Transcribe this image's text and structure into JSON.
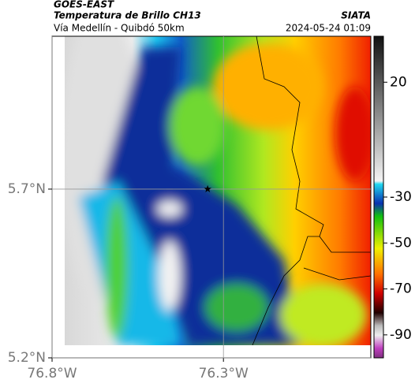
{
  "header": {
    "title": "GOES-EAST",
    "subtitle": "Temperatura de Brillo CH13",
    "source": "SIATA",
    "route": "Vía Medellín - Quibdó 50km",
    "timestamp": "2024-05-24 01:09"
  },
  "map": {
    "xlim": [
      -76.8,
      -75.87
    ],
    "ylim": [
      5.2,
      6.153
    ],
    "xticks": [
      {
        "value": -76.8,
        "label": "76.8°W"
      },
      {
        "value": -76.3,
        "label": "76.3°W"
      }
    ],
    "yticks": [
      {
        "value": 5.7,
        "label": "5.7°N"
      },
      {
        "value": 5.2,
        "label": "5.2°N"
      }
    ],
    "grid": true,
    "marker": {
      "x": -76.346,
      "y": 5.7
    }
  },
  "colorbar": {
    "clim": [
      40,
      -100
    ],
    "ticks": [
      20,
      -30,
      -50,
      -70,
      -90
    ]
  }
}
